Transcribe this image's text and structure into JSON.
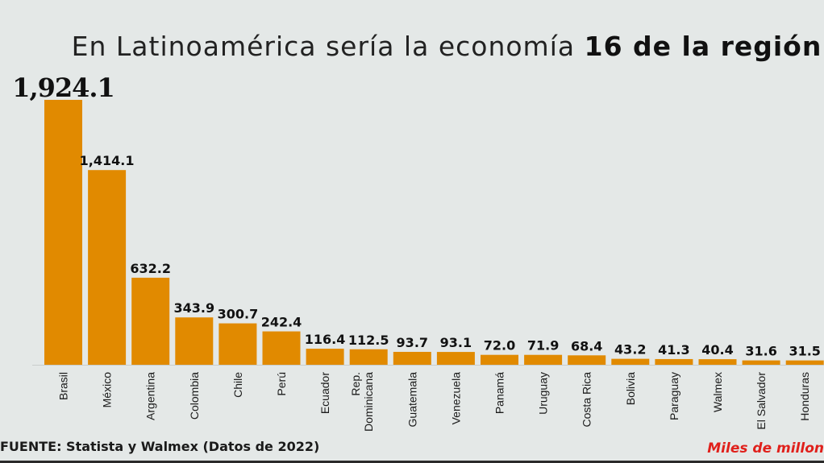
{
  "title": {
    "prefix": "En Latinoamérica sería la economía",
    "emphasis": "16 de la región"
  },
  "source": "FUENTE: Statista y Walmex (Datos de 2022)",
  "unit": "Miles de millon",
  "colors": {
    "bar": "#e18a00",
    "background": "#e4e8e7",
    "unit": "#e0201b"
  },
  "chart_data": {
    "type": "bar",
    "title": "En Latinoamérica sería la economía 16 de la región",
    "categories": [
      "Brasil",
      "México",
      "Argentina",
      "Colombia",
      "Chile",
      "Perú",
      "Ecuador",
      "Rep. Dominicana",
      "Guatemala",
      "Venezuela",
      "Panamá",
      "Uruguay",
      "Costa Rica",
      "Bolivia",
      "Paraguay",
      "Walmex",
      "El Salvador",
      "Honduras"
    ],
    "values": [
      1924.1,
      1414.1,
      632.2,
      343.9,
      300.7,
      242.4,
      116.4,
      112.5,
      93.7,
      93.1,
      72.0,
      71.9,
      68.4,
      43.2,
      41.3,
      40.4,
      31.6,
      31.5
    ],
    "value_labels": [
      "1,924.1",
      "1,414.1",
      "632.2",
      "343.9",
      "300.7",
      "242.4",
      "116.4",
      "112.5",
      "93.7",
      "93.1",
      "72.0",
      "71.9",
      "68.4",
      "43.2",
      "41.3",
      "40.4",
      "31.6",
      "31.5"
    ],
    "xlabel": "",
    "ylabel": "Miles de millon",
    "ylim": [
      0,
      1924.1
    ]
  }
}
